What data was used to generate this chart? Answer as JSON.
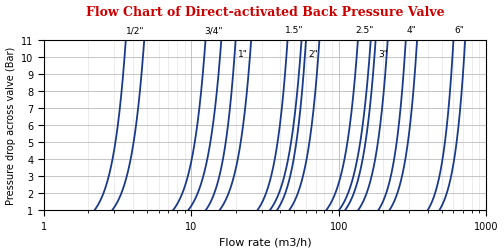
{
  "title": "Flow Chart of Direct-activated Back Pressure Valve",
  "title_color": "#cc0000",
  "xlabel": "Flow rate (m3/h)",
  "ylabel": "Pressure drop across valve (Bar)",
  "xmin": 1,
  "xmax": 1000,
  "ymin": 1,
  "ymax": 11,
  "curve_color": "#1a3a8a",
  "curve_linewidth": 1.3,
  "background_color": "#ffffff",
  "grid_major_color": "#bbbbbb",
  "grid_minor_color": "#dddddd",
  "valve_params": [
    {
      "label": "1/2\"",
      "label_at_top": true,
      "x1_L": 2.2,
      "x11_L": 3.6,
      "x1_R": 2.9,
      "x11_R": 4.8
    },
    {
      "label": "3/4\"",
      "label_at_top": true,
      "x1_L": 7.5,
      "x11_L": 12.5,
      "x1_R": 9.5,
      "x11_R": 16.0
    },
    {
      "label": "1\"",
      "label_at_top": false,
      "x1_L": 12.5,
      "x11_L": 20.0,
      "x1_R": 15.5,
      "x11_R": 25.5
    },
    {
      "label": "1.5\"",
      "label_at_top": true,
      "x1_L": 28.0,
      "x11_L": 45.0,
      "x1_R": 34.0,
      "x11_R": 56.0
    },
    {
      "label": "2\"",
      "label_at_top": false,
      "x1_L": 38.0,
      "x11_L": 60.0,
      "x1_R": 46.0,
      "x11_R": 74.0
    },
    {
      "label": "2.5\"",
      "label_at_top": true,
      "x1_L": 82.0,
      "x11_L": 135.0,
      "x1_R": 100.0,
      "x11_R": 165.0
    },
    {
      "label": "3\"",
      "label_at_top": false,
      "x1_L": 110.0,
      "x11_L": 178.0,
      "x1_R": 135.0,
      "x11_R": 215.0
    },
    {
      "label": "4\"",
      "label_at_top": true,
      "x1_L": 185.0,
      "x11_L": 285.0,
      "x1_R": 220.0,
      "x11_R": 340.0
    },
    {
      "label": "6\"",
      "label_at_top": true,
      "x1_L": 400.0,
      "x11_L": 600.0,
      "x1_R": 480.0,
      "x11_R": 720.0
    }
  ]
}
